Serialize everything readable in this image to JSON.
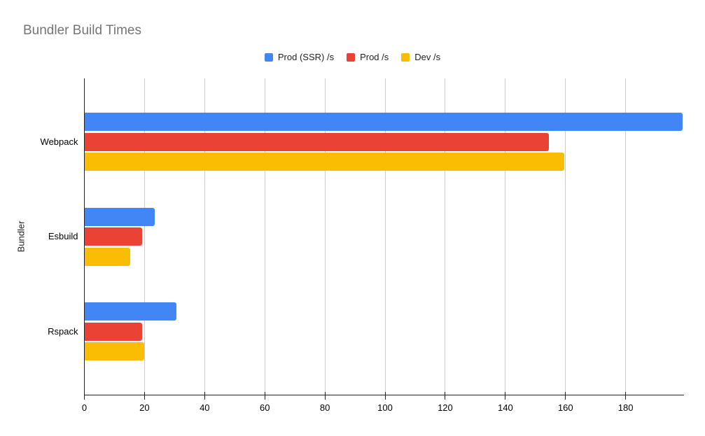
{
  "chart_data": {
    "type": "bar",
    "orientation": "horizontal",
    "title": "Bundler Build Times",
    "xlabel": "",
    "ylabel": "Bundler",
    "categories": [
      "Webpack",
      "Esbuild",
      "Rspack"
    ],
    "series": [
      {
        "name": "Prod (SSR) /s",
        "color": "#4285F4",
        "values": [
          199,
          23.5,
          30.5
        ]
      },
      {
        "name": "Prod /s",
        "color": "#EA4335",
        "values": [
          154.5,
          19.3,
          19.2
        ]
      },
      {
        "name": "Dev /s",
        "color": "#FBBC04",
        "values": [
          159.5,
          15.2,
          20
        ]
      }
    ],
    "x_ticks": [
      0,
      20,
      40,
      60,
      80,
      100,
      120,
      140,
      160,
      180
    ],
    "xlim": [
      0,
      199.4
    ],
    "grid": true,
    "legend_position": "top"
  },
  "colors": {
    "title_text": "#757575",
    "axis_text": "#000000",
    "gridline": "#cccccc",
    "axis_line": "#222222",
    "background": "#ffffff"
  }
}
